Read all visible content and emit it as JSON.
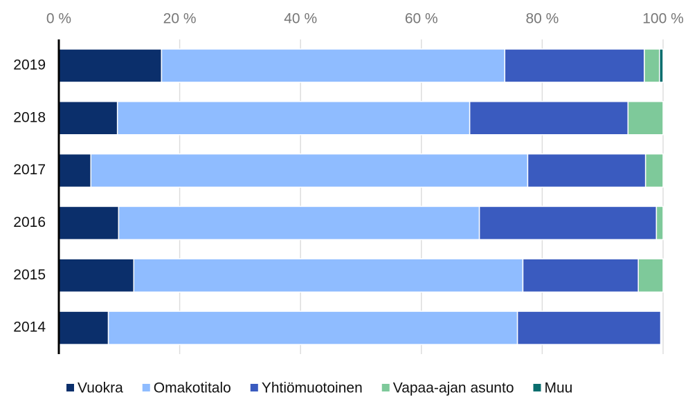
{
  "chart_data": {
    "type": "stacked-barh",
    "categories": [
      "2019",
      "2018",
      "2017",
      "2016",
      "2015",
      "2014"
    ],
    "series": [
      {
        "name": "Vuokra",
        "color": "#0b2f6b",
        "values": [
          17.0,
          9.7,
          5.3,
          9.9,
          12.4,
          8.2
        ]
      },
      {
        "name": "Omakotitalo",
        "color": "#8fbcff",
        "values": [
          56.8,
          58.3,
          72.3,
          59.7,
          64.4,
          67.7
        ]
      },
      {
        "name": "Yhtiömuotoinen",
        "color": "#3a5bbf",
        "values": [
          23.1,
          26.2,
          19.5,
          29.3,
          19.1,
          23.7
        ]
      },
      {
        "name": "Vapaa-ajan asunto",
        "color": "#7ec99a",
        "values": [
          2.5,
          5.8,
          2.9,
          1.1,
          4.1,
          0
        ]
      },
      {
        "name": "Muu",
        "color": "#0a6e6e",
        "values": [
          0.6,
          0,
          0,
          0,
          0,
          0
        ]
      }
    ],
    "xlim": [
      0,
      100
    ],
    "xticks": [
      {
        "value": 0,
        "label": "0 %"
      },
      {
        "value": 20,
        "label": "20 %"
      },
      {
        "value": 40,
        "label": "40 %"
      },
      {
        "value": 60,
        "label": "60 %"
      },
      {
        "value": 80,
        "label": "80 %"
      },
      {
        "value": 100,
        "label": "100 %"
      }
    ],
    "grid": true,
    "legend": "bottom"
  }
}
